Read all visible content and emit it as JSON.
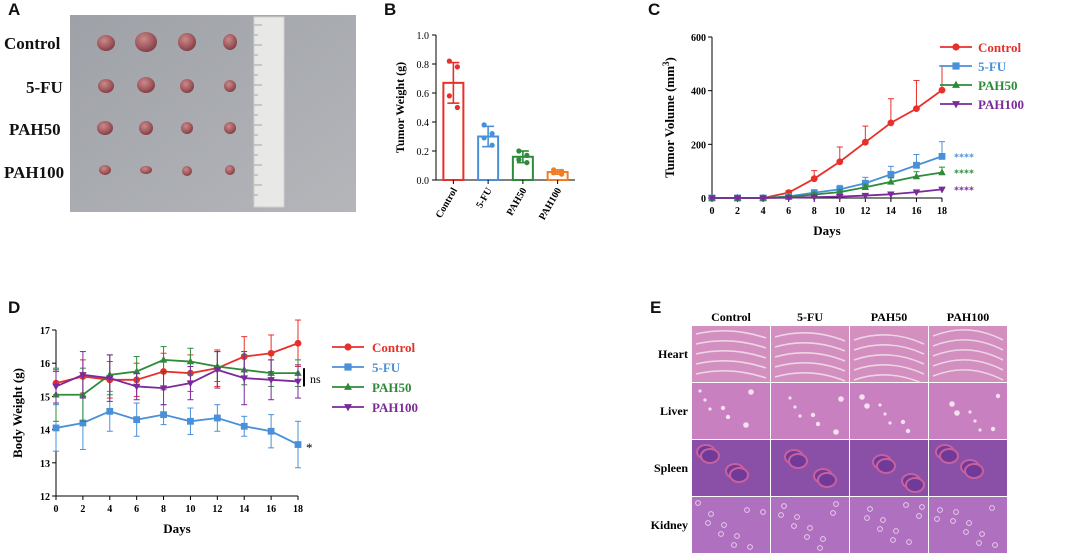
{
  "figure": {
    "panels": {
      "A": {
        "letter": "A",
        "groups": [
          "Control",
          "5-FU",
          "PAH50",
          "PAH100"
        ]
      },
      "B": {
        "letter": "B"
      },
      "C": {
        "letter": "C"
      },
      "D": {
        "letter": "D"
      },
      "E": {
        "letter": "E",
        "columns": [
          "Control",
          "5-FU",
          "PAH50",
          "PAH100"
        ],
        "rows": [
          "Heart",
          "Liver",
          "Spleen",
          "Kidney"
        ]
      }
    }
  },
  "chart_data": [
    {
      "id": "B",
      "type": "bar",
      "title": "",
      "xlabel": "",
      "ylabel": "Tumor Weight (g)",
      "ylim": [
        0,
        1.0
      ],
      "yticks": [
        "0.0",
        "0.2",
        "0.4",
        "0.6",
        "0.8",
        "1.0"
      ],
      "categories": [
        "Control",
        "5-FU",
        "PAH50",
        "PAH100"
      ],
      "values": [
        0.67,
        0.3,
        0.16,
        0.055
      ],
      "errors": [
        0.14,
        0.07,
        0.04,
        0.015
      ],
      "points": [
        [
          0.82,
          0.78,
          0.58,
          0.5
        ],
        [
          0.38,
          0.32,
          0.29,
          0.24
        ],
        [
          0.2,
          0.17,
          0.14,
          0.12
        ],
        [
          0.07,
          0.06,
          0.05,
          0.04
        ]
      ],
      "colors": [
        "#e8302a",
        "#4a90d9",
        "#2e8b3a",
        "#f07c26"
      ]
    },
    {
      "id": "C",
      "type": "line",
      "title": "",
      "xlabel": "Days",
      "ylabel": "Tumor Volume (mm3)",
      "ylabel_main": "Tumor Volume (mm",
      "ylabel_sup": "3",
      "ylabel_end": ")",
      "xlim": [
        0,
        18
      ],
      "ylim": [
        0,
        600
      ],
      "x": [
        0,
        2,
        4,
        6,
        8,
        10,
        12,
        14,
        16,
        18
      ],
      "xticks": [
        "0",
        "2",
        "4",
        "6",
        "8",
        "10",
        "12",
        "14",
        "16",
        "18"
      ],
      "yticks": [
        "0",
        "200",
        "400",
        "600"
      ],
      "series": [
        {
          "name": "Control",
          "color": "#e8302a",
          "marker": "circle",
          "values": [
            0,
            0,
            0,
            20,
            72,
            135,
            208,
            280,
            333,
            402
          ],
          "errors": [
            0,
            0,
            0,
            8,
            30,
            55,
            60,
            90,
            105,
            90
          ]
        },
        {
          "name": "5-FU",
          "color": "#4a90d9",
          "marker": "square",
          "values": [
            0,
            0,
            0,
            6,
            20,
            32,
            55,
            88,
            122,
            155
          ],
          "errors": [
            0,
            0,
            0,
            4,
            10,
            15,
            22,
            30,
            40,
            55
          ]
        },
        {
          "name": "PAH50",
          "color": "#2e8b3a",
          "marker": "triangle-up",
          "values": [
            0,
            0,
            0,
            4,
            13,
            22,
            40,
            60,
            80,
            95
          ],
          "errors": [
            0,
            0,
            0,
            3,
            6,
            9,
            12,
            15,
            18,
            20
          ]
        },
        {
          "name": "PAH100",
          "color": "#7a2a9a",
          "marker": "triangle-down",
          "values": [
            0,
            0,
            0,
            1,
            3,
            5,
            9,
            14,
            22,
            32
          ],
          "errors": [
            0,
            0,
            0,
            1,
            2,
            3,
            4,
            5,
            6,
            8
          ]
        }
      ],
      "annotations": [
        "****",
        "****",
        "****"
      ]
    },
    {
      "id": "D",
      "type": "line",
      "title": "",
      "xlabel": "Days",
      "ylabel": "Body Weight (g)",
      "xlim": [
        0,
        18
      ],
      "ylim": [
        12,
        17
      ],
      "x": [
        0,
        2,
        4,
        6,
        8,
        10,
        12,
        14,
        16,
        18
      ],
      "xticks": [
        "0",
        "2",
        "4",
        "6",
        "8",
        "10",
        "12",
        "14",
        "16",
        "18"
      ],
      "yticks": [
        "12",
        "13",
        "14",
        "15",
        "16",
        "17"
      ],
      "series": [
        {
          "name": "Control",
          "color": "#e8302a",
          "marker": "circle",
          "values": [
            15.4,
            15.6,
            15.5,
            15.5,
            15.75,
            15.7,
            15.85,
            16.2,
            16.3,
            16.6
          ],
          "errors": [
            0.35,
            0.5,
            0.55,
            0.5,
            0.55,
            0.55,
            0.55,
            0.6,
            0.55,
            0.7
          ]
        },
        {
          "name": "5-FU",
          "color": "#4a90d9",
          "marker": "square",
          "values": [
            14.05,
            14.2,
            14.55,
            14.3,
            14.45,
            14.25,
            14.35,
            14.1,
            13.95,
            13.55
          ],
          "errors": [
            0.7,
            0.8,
            0.6,
            0.5,
            0.3,
            0.4,
            0.4,
            0.3,
            0.5,
            0.7
          ]
        },
        {
          "name": "PAH50",
          "color": "#2e8b3a",
          "marker": "triangle-up",
          "values": [
            15.05,
            15.05,
            15.65,
            15.75,
            16.1,
            16.05,
            15.9,
            15.8,
            15.7,
            15.7
          ],
          "errors": [
            0.8,
            0.8,
            0.6,
            0.45,
            0.4,
            0.4,
            0.45,
            0.45,
            0.4,
            0.4
          ]
        },
        {
          "name": "PAH100",
          "color": "#7a2a9a",
          "marker": "triangle-down",
          "values": [
            15.3,
            15.65,
            15.55,
            15.3,
            15.25,
            15.4,
            15.8,
            15.55,
            15.5,
            15.45
          ],
          "errors": [
            0.5,
            0.7,
            0.7,
            0.4,
            0.5,
            0.5,
            0.55,
            0.8,
            0.6,
            0.5
          ]
        }
      ],
      "annotations": [
        "ns",
        "*"
      ]
    }
  ]
}
